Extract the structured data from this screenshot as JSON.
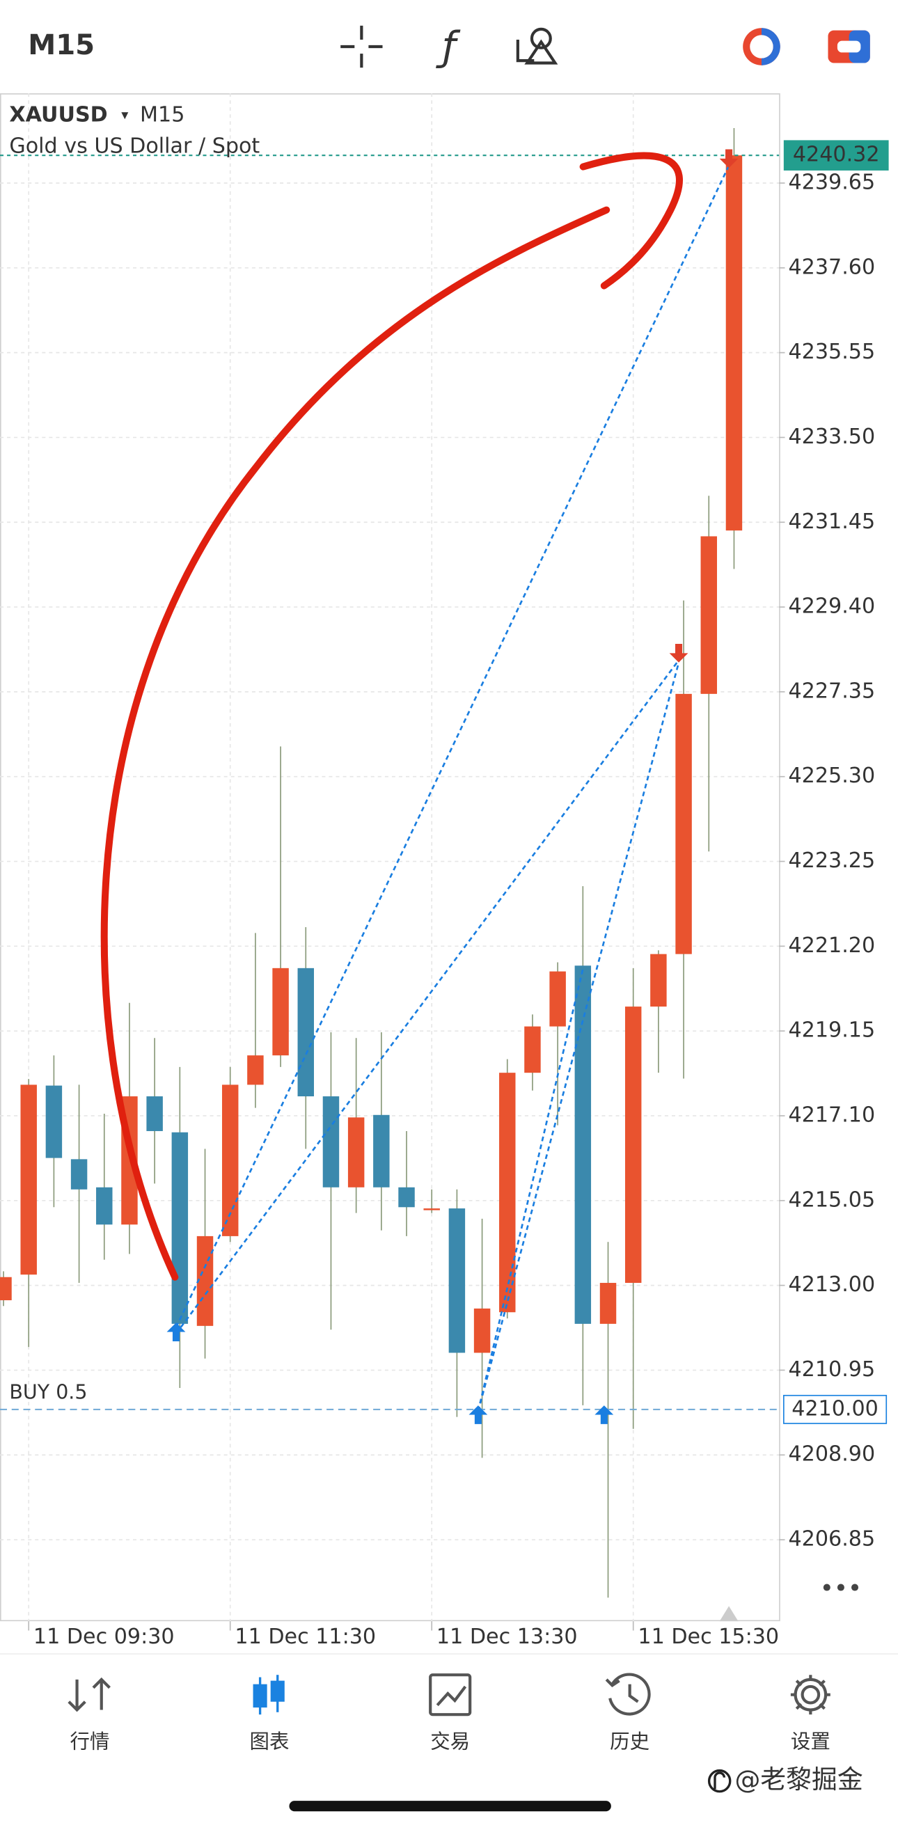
{
  "toolbar": {
    "timeframe": "M15"
  },
  "chart_data": {
    "type": "candlestick",
    "symbol": "XAUUSD",
    "timeframe": "M15",
    "description": "Gold vs US Dollar / Spot",
    "categories": [
      null,
      "11 Dec 09:30",
      null,
      null,
      null,
      null,
      null,
      null,
      null,
      "11 Dec 11:30",
      null,
      null,
      null,
      null,
      null,
      null,
      null,
      "11 Dec 13:30",
      null,
      null,
      null,
      null,
      null,
      null,
      null,
      "11 Dec 15:30",
      null,
      null,
      null,
      null
    ],
    "open": [
      4212.64,
      4213.26,
      4217.83,
      4216.05,
      4215.37,
      4214.47,
      4217.57,
      4216.7,
      4212.02,
      4214.19,
      4217.85,
      4218.56,
      4220.67,
      4217.57,
      4215.37,
      4217.12,
      4215.37,
      4214.84,
      4214.86,
      4211.37,
      4212.35,
      4218.14,
      4219.26,
      4220.73,
      4212.07,
      4213.06,
      4219.74,
      4221.01,
      4227.3,
      4231.25
    ],
    "high": [
      4213.34,
      4217.99,
      4218.56,
      4217.85,
      4217.15,
      4219.83,
      4218.98,
      4218.28,
      4216.3,
      4218.28,
      4221.52,
      4226.03,
      4221.66,
      4219.12,
      4218.98,
      4219.12,
      4216.73,
      4215.32,
      4215.32,
      4214.61,
      4218.47,
      4219.55,
      4220.81,
      4222.65,
      4214.05,
      4220.67,
      4221.1,
      4229.56,
      4232.09,
      4240.98
    ],
    "low": [
      4212.5,
      4211.51,
      4214.89,
      4213.06,
      4213.62,
      4213.76,
      4215.46,
      4210.52,
      4211.23,
      4214.05,
      4217.29,
      4218.28,
      4216.3,
      4211.93,
      4214.75,
      4214.33,
      4214.19,
      4214.75,
      4209.82,
      4208.83,
      4212.2,
      4217.71,
      4216.87,
      4210.1,
      4205.45,
      4209.53,
      4218.14,
      4218.0,
      4223.49,
      4230.32
    ],
    "close": [
      4213.2,
      4217.85,
      4216.08,
      4215.32,
      4214.47,
      4217.57,
      4216.73,
      4212.07,
      4214.19,
      4217.85,
      4218.56,
      4220.67,
      4217.57,
      4215.37,
      4217.06,
      4215.37,
      4214.89,
      4214.86,
      4211.37,
      4212.44,
      4218.14,
      4219.26,
      4220.59,
      4212.07,
      4213.06,
      4219.74,
      4221.01,
      4227.3,
      4231.11,
      4240.32
    ],
    "up_color": "#e9532f",
    "down_color": "#3b89ad",
    "ylim": [
      4204.88,
      4241.82
    ],
    "yticks": [
      4239.65,
      {
        "value": 4237.6,
        "label": "4237.60"
      },
      4235.55,
      {
        "value": 4233.5,
        "label": "4233.50"
      },
      4231.45,
      {
        "value": 4229.4,
        "label": "4229.40"
      },
      4227.35,
      {
        "value": 4225.3,
        "label": "4225.30"
      },
      4223.25,
      {
        "value": 4221.2,
        "label": "4221.20"
      },
      4219.15,
      {
        "value": 4217.1,
        "label": "4217.10"
      },
      4215.05,
      {
        "value": 4213,
        "label": "4213.00"
      },
      4210.95,
      {
        "value": 4208.9,
        "label": "4208.90"
      },
      4206.85
    ],
    "grid": true,
    "bid": 4240.32,
    "position": {
      "label": "BUY 0.5",
      "price": {
        "value": 4210,
        "label": "4210.00"
      }
    }
  },
  "nav": [
    "行情",
    "图表",
    "交易",
    "历史",
    "设置"
  ],
  "active_nav": 1,
  "watermark": "@老黎掘金"
}
